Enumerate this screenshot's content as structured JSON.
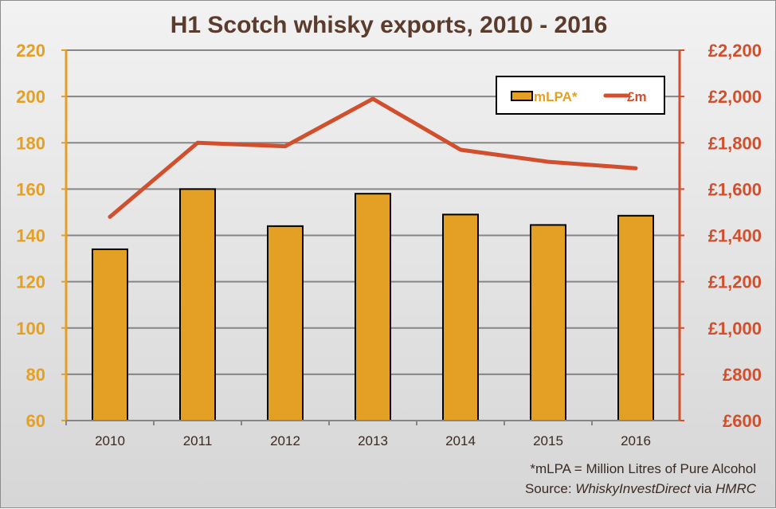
{
  "chart_data": {
    "type": "bar+line",
    "title": "H1 Scotch whisky exports, 2010 - 2016",
    "categories": [
      "2010",
      "2011",
      "2012",
      "2013",
      "2014",
      "2015",
      "2016"
    ],
    "series": [
      {
        "name": "mLPA*",
        "type": "bar",
        "axis": "left",
        "color": "#e3a024",
        "values": [
          134,
          160,
          144,
          158,
          149,
          144.5,
          148.5
        ]
      },
      {
        "name": "£m",
        "type": "line",
        "axis": "right",
        "color": "#d14f2d",
        "values": [
          1480,
          1800,
          1785,
          1990,
          1770,
          1718,
          1690
        ]
      }
    ],
    "left_axis": {
      "ylim": [
        60,
        220
      ],
      "ticks": [
        "60",
        "80",
        "100",
        "120",
        "140",
        "160",
        "180",
        "200",
        "220"
      ],
      "color": "#e3a024"
    },
    "right_axis": {
      "ylim": [
        600,
        2200
      ],
      "ticks": [
        "£600",
        "£800",
        "£1,000",
        "£1,200",
        "£1,400",
        "£1,600",
        "£1,800",
        "£2,000",
        "£2,200"
      ],
      "color": "#d14f2d"
    },
    "grid": true,
    "legend_position": "top-right",
    "footnote": "*mLPA = Million Litres of Pure Alcohol",
    "source": {
      "prefix": "Source: ",
      "name": "WhiskyInvestDirect",
      "via": " via ",
      "origin": "HMRC"
    }
  }
}
